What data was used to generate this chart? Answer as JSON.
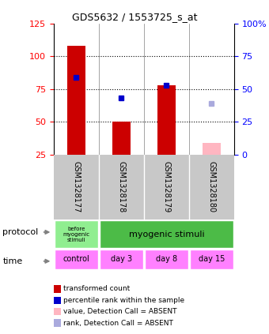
{
  "title": "GDS5632 / 1553725_s_at",
  "samples": [
    "GSM1328177",
    "GSM1328178",
    "GSM1328179",
    "GSM1328180"
  ],
  "red_bars": [
    108,
    50,
    78,
    null
  ],
  "red_bars_absent": [
    null,
    null,
    null,
    34
  ],
  "blue_squares": [
    84,
    68,
    78,
    null
  ],
  "blue_squares_absent": [
    null,
    null,
    null,
    64
  ],
  "ylim_left": [
    25,
    125
  ],
  "yticks_left": [
    25,
    50,
    75,
    100,
    125
  ],
  "yticks_right": [
    0,
    25,
    50,
    75,
    100
  ],
  "ytick_labels_right": [
    "0",
    "25",
    "50",
    "75",
    "100%"
  ],
  "hlines": [
    50,
    75,
    100
  ],
  "time_labels": [
    "control",
    "day 3",
    "day 8",
    "day 15"
  ],
  "time_color": "#FF80FF",
  "sample_bg_color": "#C8C8C8",
  "bar_width": 0.4,
  "red_color": "#CC0000",
  "red_absent_color": "#FFB6C1",
  "blue_color": "#0000CC",
  "blue_absent_color": "#AAAADD",
  "protocol_color_light": "#90EE90",
  "protocol_color_dark": "#4CBB47",
  "legend_items": [
    {
      "color": "#CC0000",
      "label": "transformed count"
    },
    {
      "color": "#0000CC",
      "label": "percentile rank within the sample"
    },
    {
      "color": "#FFB6C1",
      "label": "value, Detection Call = ABSENT"
    },
    {
      "color": "#AAAADD",
      "label": "rank, Detection Call = ABSENT"
    }
  ]
}
